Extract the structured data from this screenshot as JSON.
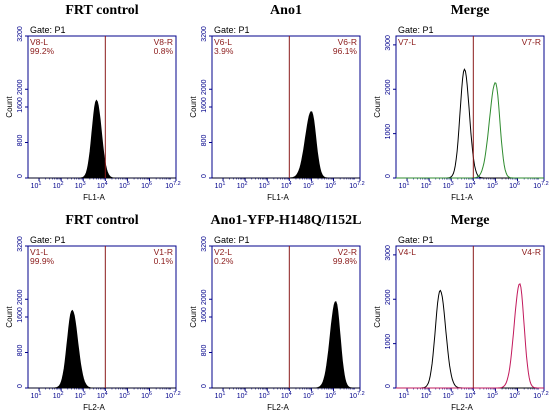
{
  "chart_data": [
    {
      "type": "histogram",
      "title": "FRT control",
      "gate": "Gate: P1",
      "xlabel": "FL1-A",
      "ylabel": "Count",
      "x_scale": "log",
      "xlim": [
        0.5,
        7.2
      ],
      "ylim": [
        0,
        3200
      ],
      "yticks": [
        0,
        800,
        1600,
        2000,
        3200
      ],
      "xticks": [
        "10",
        "10",
        "10",
        "10",
        "10",
        "10",
        "10"
      ],
      "xtick_exps": [
        "1",
        "2",
        "3",
        "4",
        "5",
        "6",
        "7.2"
      ],
      "gate_x": 4.0,
      "regions": [
        {
          "name": "V8-L",
          "pct": "99.2%"
        },
        {
          "name": "V8-R",
          "pct": "0.8%"
        }
      ],
      "series": [
        {
          "color": "#000000",
          "filled": true,
          "peak_x": 3.6,
          "peak_y": 1750,
          "sigma_left": 0.2,
          "sigma_right": 0.22
        }
      ]
    },
    {
      "type": "histogram",
      "title": "Ano1",
      "gate": "Gate: P1",
      "xlabel": "FL1-A",
      "ylabel": "Count",
      "x_scale": "log",
      "xlim": [
        0.5,
        7.2
      ],
      "ylim": [
        0,
        3200
      ],
      "yticks": [
        0,
        800,
        1600,
        2000,
        3200
      ],
      "xticks": [
        "10",
        "10",
        "10",
        "10",
        "10",
        "10",
        "10"
      ],
      "xtick_exps": [
        "1",
        "2",
        "3",
        "4",
        "5",
        "6",
        "7.2"
      ],
      "gate_x": 4.0,
      "regions": [
        {
          "name": "V6-L",
          "pct": "3.9%"
        },
        {
          "name": "V6-R",
          "pct": "96.1%"
        }
      ],
      "series": [
        {
          "color": "#000000",
          "filled": true,
          "peak_x": 5.0,
          "peak_y": 1500,
          "sigma_left": 0.27,
          "sigma_right": 0.2
        }
      ]
    },
    {
      "type": "histogram",
      "title": "Merge",
      "gate": "Gate: P1",
      "xlabel": "FL1-A",
      "ylabel": "Count",
      "x_scale": "log",
      "xlim": [
        0.5,
        7.2
      ],
      "ylim": [
        0,
        3200
      ],
      "yticks": [
        0,
        1000,
        2000,
        3000
      ],
      "xticks": [
        "10",
        "10",
        "10",
        "10",
        "10",
        "10",
        "10"
      ],
      "xtick_exps": [
        "1",
        "2",
        "3",
        "4",
        "5",
        "6",
        "7.2"
      ],
      "gate_x": 4.0,
      "regions": [
        {
          "name": "V7-L",
          "pct": ""
        },
        {
          "name": "V7-R",
          "pct": ""
        }
      ],
      "series": [
        {
          "color": "#000000",
          "filled": false,
          "peak_x": 3.6,
          "peak_y": 2450,
          "sigma_left": 0.2,
          "sigma_right": 0.22
        },
        {
          "color": "#2e8b2e",
          "filled": false,
          "peak_x": 5.0,
          "peak_y": 2150,
          "sigma_left": 0.27,
          "sigma_right": 0.2
        }
      ]
    },
    {
      "type": "histogram",
      "title": "FRT control",
      "gate": "Gate: P1",
      "xlabel": "FL2-A",
      "ylabel": "Count",
      "x_scale": "log",
      "xlim": [
        0.5,
        7.2
      ],
      "ylim": [
        0,
        3200
      ],
      "yticks": [
        0,
        800,
        1600,
        2000,
        3200
      ],
      "xticks": [
        "10",
        "10",
        "10",
        "10",
        "10",
        "10",
        "10"
      ],
      "xtick_exps": [
        "1",
        "2",
        "3",
        "4",
        "5",
        "6",
        "7.2"
      ],
      "gate_x": 4.0,
      "regions": [
        {
          "name": "V1-L",
          "pct": "99.9%"
        },
        {
          "name": "V1-R",
          "pct": "0.1%"
        }
      ],
      "series": [
        {
          "color": "#000000",
          "filled": true,
          "peak_x": 2.5,
          "peak_y": 1750,
          "sigma_left": 0.22,
          "sigma_right": 0.25
        }
      ]
    },
    {
      "type": "histogram",
      "title": "Ano1-YFP-H148Q/I152L",
      "gate": "Gate: P1",
      "xlabel": "FL2-A",
      "ylabel": "Count",
      "x_scale": "log",
      "xlim": [
        0.5,
        7.2
      ],
      "ylim": [
        0,
        3200
      ],
      "yticks": [
        0,
        800,
        1600,
        2000,
        3200
      ],
      "xticks": [
        "10",
        "10",
        "10",
        "10",
        "10",
        "10",
        "10"
      ],
      "xtick_exps": [
        "1",
        "2",
        "3",
        "4",
        "5",
        "6",
        "7.2"
      ],
      "gate_x": 4.0,
      "regions": [
        {
          "name": "V2-L",
          "pct": "0.2%"
        },
        {
          "name": "V2-R",
          "pct": "99.8%"
        }
      ],
      "series": [
        {
          "color": "#000000",
          "filled": true,
          "peak_x": 6.1,
          "peak_y": 1950,
          "sigma_left": 0.25,
          "sigma_right": 0.2
        }
      ]
    },
    {
      "type": "histogram",
      "title": "Merge",
      "gate": "Gate: P1",
      "xlabel": "FL2-A",
      "ylabel": "Count",
      "x_scale": "log",
      "xlim": [
        0.5,
        7.2
      ],
      "ylim": [
        0,
        3200
      ],
      "yticks": [
        0,
        1000,
        2000,
        3000
      ],
      "xticks": [
        "10",
        "10",
        "10",
        "10",
        "10",
        "10",
        "10"
      ],
      "xtick_exps": [
        "1",
        "2",
        "3",
        "4",
        "5",
        "6",
        "7.2"
      ],
      "gate_x": 4.0,
      "regions": [
        {
          "name": "V4-L",
          "pct": ""
        },
        {
          "name": "V4-R",
          "pct": ""
        }
      ],
      "series": [
        {
          "color": "#000000",
          "filled": false,
          "peak_x": 2.5,
          "peak_y": 2200,
          "sigma_left": 0.22,
          "sigma_right": 0.25
        },
        {
          "color": "#c2185b",
          "filled": false,
          "peak_x": 6.1,
          "peak_y": 2350,
          "sigma_left": 0.25,
          "sigma_right": 0.2
        }
      ]
    }
  ],
  "colors": {
    "axis": "#00008b",
    "gate_line": "#8b1a1a",
    "region_text": "#8b1a1a"
  }
}
